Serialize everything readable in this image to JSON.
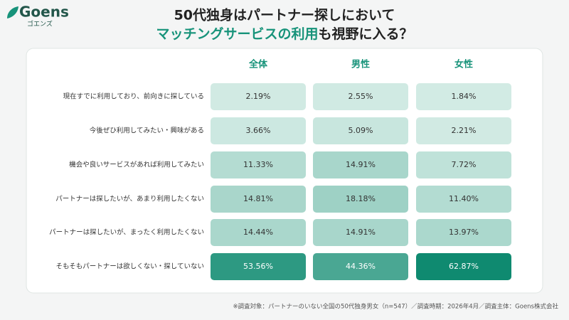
{
  "logo": {
    "name": "Goens",
    "kana": "ゴエンズ"
  },
  "chart_data": {
    "type": "heatmap",
    "title": [
      "50代独身はパートナー探しにおいて",
      "マッチングサービスの利用",
      "も視野に入る？"
    ],
    "highlight_color": "#17937a",
    "columns": [
      "全体",
      "男性",
      "女性"
    ],
    "categories": [
      "現在すでに利用しており、前向きに探している",
      "今後ぜひ利用してみたい・興味がある",
      "機会や良いサービスがあれば利用してみたい",
      "パートナーは探したいが、あまり利用したくない",
      "パートナーは探したいが、まったく利用したくない",
      "そもそもパートナーは欲しくない・探していない"
    ],
    "values": [
      [
        2.19,
        2.55,
        1.84
      ],
      [
        3.66,
        5.09,
        2.21
      ],
      [
        11.33,
        14.91,
        7.72
      ],
      [
        14.81,
        18.18,
        11.4
      ],
      [
        14.44,
        14.91,
        13.97
      ],
      [
        53.56,
        44.36,
        62.87
      ]
    ],
    "value_labels": [
      [
        "2.19%",
        "2.55%",
        "1.84%"
      ],
      [
        "3.66%",
        "5.09%",
        "2.21%"
      ],
      [
        "11.33%",
        "14.91%",
        "7.72%"
      ],
      [
        "14.81%",
        "18.18%",
        "11.40%"
      ],
      [
        "14.44%",
        "14.91%",
        "13.97%"
      ],
      [
        "53.56%",
        "44.36%",
        "62.87%"
      ]
    ],
    "colormap": [
      "#d2ebe4",
      "#0f8a70"
    ],
    "note": "※調査対象：パートナーのいない全国の50代独身男女（n=547）／調査時期：2026年4月／調査主体：Goens株式会社"
  }
}
